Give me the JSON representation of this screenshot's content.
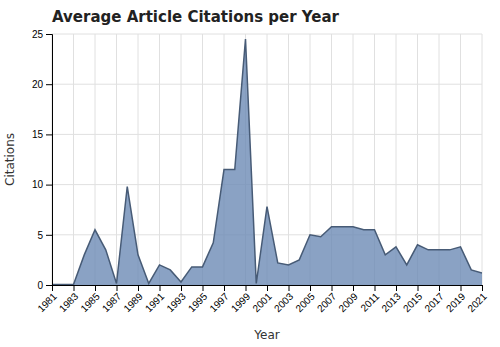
{
  "chart_data": {
    "type": "area",
    "title": "Average Article Citations per Year",
    "xlabel": "Year",
    "ylabel": "Citations",
    "x": [
      1981,
      1982,
      1983,
      1984,
      1985,
      1986,
      1987,
      1988,
      1989,
      1990,
      1991,
      1992,
      1993,
      1994,
      1995,
      1996,
      1997,
      1998,
      1999,
      2000,
      2001,
      2002,
      2003,
      2004,
      2005,
      2006,
      2007,
      2008,
      2009,
      2010,
      2011,
      2012,
      2013,
      2014,
      2015,
      2016,
      2017,
      2018,
      2019,
      2020,
      2021
    ],
    "values": [
      0.05,
      0.05,
      0.05,
      3.0,
      5.5,
      3.5,
      0.15,
      9.8,
      3.0,
      0.15,
      2.0,
      1.5,
      0.3,
      1.8,
      1.8,
      4.2,
      11.5,
      11.5,
      24.5,
      0.15,
      7.8,
      2.2,
      2.0,
      2.5,
      5.0,
      4.8,
      5.8,
      5.8,
      5.8,
      5.5,
      5.5,
      3.0,
      3.8,
      2.0,
      4.0,
      3.5,
      3.5,
      3.5,
      3.8,
      1.5,
      1.2
    ],
    "color": "#6d8bb5",
    "xlim": [
      1981,
      2021
    ],
    "xticks": [
      1981,
      1983,
      1985,
      1987,
      1989,
      1991,
      1993,
      1995,
      1997,
      1999,
      2001,
      2003,
      2005,
      2007,
      2009,
      2011,
      2013,
      2015,
      2017,
      2019,
      2021
    ],
    "ylim": [
      0,
      25
    ],
    "yticks": [
      0,
      5,
      10,
      15,
      20,
      25
    ],
    "grid": true
  }
}
